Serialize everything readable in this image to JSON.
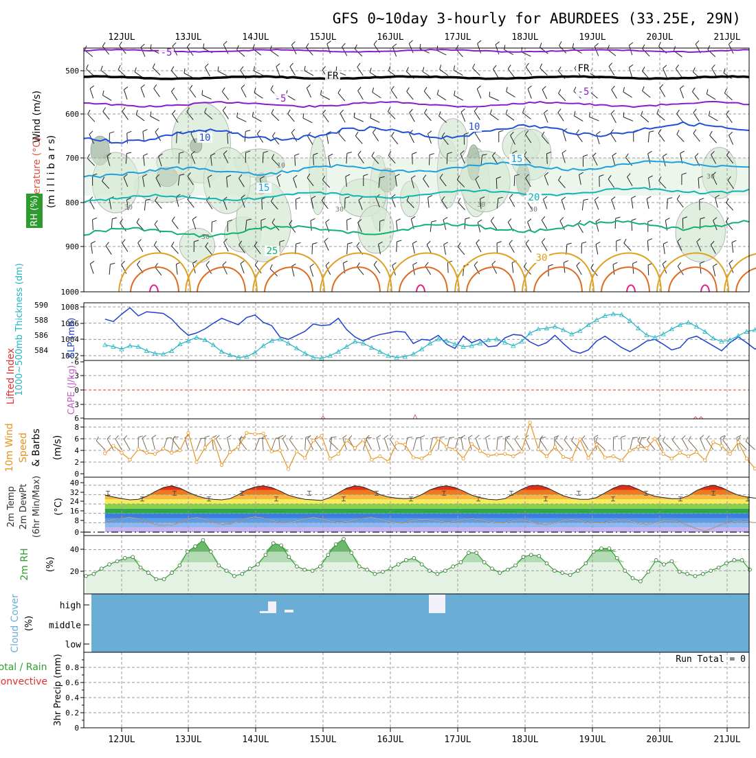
{
  "title": "GFS 0~10day 3-hourly for ABURDEES (33.25E, 29N)",
  "dates": [
    "12JUL",
    "13JUL",
    "14JUL",
    "15JUL",
    "16JUL",
    "17JUL",
    "18JUL",
    "19JUL",
    "20JUL",
    "21JUL"
  ],
  "panels": {
    "upper": {
      "axis_label": "(m i l l i b a r s)",
      "side_labels": {
        "wind": "Wind (m/s)",
        "temperature": "Temperature (°C)",
        "rh": "RH (%)"
      },
      "yticks": [
        "500",
        "600",
        "700",
        "800",
        "900",
        "1000"
      ],
      "contour_labels": [
        {
          "text": "-5",
          "level": "-5"
        },
        {
          "text": "FR",
          "level": "0"
        },
        {
          "text": "FR",
          "level": "0"
        },
        {
          "text": "-5",
          "level": "-5"
        },
        {
          "text": "-5",
          "level": "-5"
        },
        {
          "text": "10",
          "level": "10"
        },
        {
          "text": "10",
          "level": "10"
        },
        {
          "text": "15",
          "level": "15"
        },
        {
          "text": "15",
          "level": "15"
        },
        {
          "text": "20",
          "level": "20"
        },
        {
          "text": "25",
          "level": "25"
        },
        {
          "text": "30",
          "level": "30"
        }
      ],
      "rh_labels": [
        "10",
        "30",
        "30",
        "30",
        "30",
        "30",
        "30"
      ]
    },
    "slp": {
      "left_label": "1000~500mb Thickness (dm)",
      "right_label": "SLP (mb)",
      "left_ticks": [
        "590",
        "588",
        "586",
        "584"
      ],
      "right_ticks": [
        "1008",
        "1006",
        "1004",
        "1002"
      ]
    },
    "cape": {
      "label_li": "Lifted Index",
      "label_cape": "CAPE (J/kg)",
      "ticks": [
        "-6",
        "-3",
        "0",
        "3",
        "6"
      ]
    },
    "wind10": {
      "label1": "10m Wind",
      "label2": "Speed",
      "label3": "& Barbs",
      "unit": "(m/s)",
      "ticks": [
        "8",
        "6",
        "4",
        "2",
        "0"
      ]
    },
    "temp": {
      "label1": "2m Temp",
      "label2": "2m DewPt",
      "label3": "(6hr Min/Max)",
      "unit": "(°C)",
      "ticks": [
        "40",
        "32",
        "24",
        "16",
        "8",
        "0"
      ]
    },
    "rh2m": {
      "label": "2m RH",
      "unit": "(%)",
      "ticks": [
        "40",
        "20"
      ]
    },
    "cloud": {
      "label1": "Cloud Cover",
      "label2": "(%)",
      "levels": [
        "high",
        "middle",
        "low"
      ]
    },
    "precip": {
      "label1": "Total / Rain",
      "label2": "Convective",
      "label3": "3hr Precip (mm)",
      "ticks": [
        "0.8",
        "0.6",
        "0.4",
        "0.2",
        "0"
      ],
      "run_total": "Run Total = 0"
    }
  },
  "colors": {
    "slp": "#1f3fd0",
    "thickness": "#22b4c4",
    "wind10": "#e8901a",
    "rh": "#2fa02f",
    "cloud": "#6aaed6",
    "cape_zero": "#e03030",
    "temp_purple": "#8a1cc8",
    "temp_blue": "#1f4fd8",
    "temp_cyan": "#1ea0e0",
    "temp_teal": "#10b4b0",
    "temp_green": "#10b070",
    "temp_orange": "#e0a020"
  },
  "chart_data": [
    {
      "type": "line",
      "title": "SLP (mb)",
      "x_start": "12JUL",
      "step_hours": 3,
      "ylim": [
        1002,
        1008
      ],
      "series": [
        {
          "name": "SLP (mb)",
          "values": [
            1006.5,
            1006.2,
            1007.1,
            1007.9,
            1006.9,
            1007.4,
            1007.3,
            1007.2,
            1006.5,
            1005.4,
            1004.5,
            1004.8,
            1005.3,
            1006.0,
            1006.6,
            1006.2,
            1005.8,
            1006.7,
            1007.0,
            1006.1,
            1005.7,
            1004.3,
            1004.0,
            1004.5,
            1005.0,
            1005.9,
            1005.7,
            1005.8,
            1006.6,
            1005.2,
            1004.3,
            1003.8,
            1004.3,
            1004.6,
            1004.8,
            1005.0,
            1004.9,
            1003.5,
            1004.0,
            1003.9,
            1004.5,
            1003.4,
            1002.9,
            1004.4,
            1003.6,
            1004.0,
            1003.1,
            1003.2,
            1004.2,
            1004.6,
            1004.5,
            1003.7,
            1003.2,
            1003.6,
            1004.5,
            1003.5,
            1002.6,
            1002.3,
            1002.7,
            1003.8,
            1004.4,
            1003.7,
            1003.0,
            1002.5,
            1003.1,
            1003.8,
            1004.0,
            1003.4,
            1002.7,
            1003.0,
            1004.1,
            1004.4,
            1003.8,
            1003.2,
            1002.6,
            1003.6,
            1004.3,
            1003.6,
            1002.8,
            1003.5,
            1004.4,
            1004.5,
            1003.6,
            1003.9,
            1004.2,
            1003.7,
            1003.6,
            1004.1,
            1004.3,
            1004.8,
            1004.9
          ]
        }
      ]
    },
    {
      "type": "line",
      "title": "1000~500mb Thickness (dm)",
      "x_start": "12JUL",
      "step_hours": 3,
      "ylim": [
        583,
        590
      ],
      "series": [
        {
          "name": "1000~500mb Thickness (dm)",
          "values": [
            585.2,
            585.0,
            584.7,
            585.1,
            585.0,
            584.5,
            584.2,
            584.1,
            584.5,
            585.3,
            585.7,
            586.1,
            585.8,
            585.2,
            584.4,
            584.0,
            583.7,
            583.8,
            584.3,
            585.1,
            585.7,
            585.9,
            585.4,
            584.8,
            584.2,
            583.7,
            583.6,
            583.9,
            584.4,
            585.0,
            585.6,
            585.4,
            584.9,
            584.4,
            583.9,
            583.7,
            583.8,
            584.1,
            584.7,
            585.4,
            585.9,
            585.7,
            585.3,
            585.0,
            585.1,
            585.4,
            585.8,
            585.9,
            585.5,
            585.1,
            585.6,
            586.6,
            587.1,
            587.2,
            587.4,
            587.0,
            586.5,
            586.9,
            587.6,
            588.2,
            588.7,
            588.9,
            588.8,
            588.1,
            587.2,
            586.4,
            586.1,
            586.5,
            587.1,
            587.6,
            587.9,
            587.4,
            586.8,
            586.0,
            585.6,
            585.8,
            586.3,
            586.8,
            587.0,
            586.8,
            586.1,
            585.6,
            585.5,
            585.7,
            585.9,
            585.7,
            585.5,
            585.4,
            585.4,
            585.5,
            585.6
          ]
        }
      ]
    },
    {
      "type": "line",
      "title": "10m Wind Speed & Barbs (m/s)",
      "x_start": "12JUL",
      "step_hours": 3,
      "ylim": [
        0,
        9
      ],
      "series": [
        {
          "name": "10m Wind Speed",
          "values": [
            3.5,
            4.8,
            3.6,
            2.4,
            4.2,
            3.6,
            3.4,
            4.3,
            3.6,
            4.0,
            7.0,
            2.0,
            4.5,
            6.0,
            1.5,
            3.7,
            4.6,
            7.0,
            6.8,
            6.9,
            3.8,
            4.0,
            0.8,
            3.8,
            2.7,
            5.7,
            6.5,
            2.6,
            3.4,
            5.7,
            4.4,
            5.8,
            2.4,
            3.0,
            2.1,
            5.3,
            5.0,
            2.8,
            2.6,
            3.5,
            6.0,
            4.6,
            4.2,
            2.6,
            5.1,
            3.9,
            3.1,
            3.3,
            3.4,
            3.0,
            3.8,
            8.8,
            4.2,
            3.0,
            4.6,
            2.9,
            2.5,
            5.9,
            2.7,
            5.0,
            2.8,
            3.0,
            2.3,
            4.0,
            4.6,
            4.4,
            6.0,
            3.4,
            2.6,
            3.6,
            3.0,
            3.7,
            2.3,
            5.4,
            4.8,
            3.4,
            5.4,
            2.6,
            0.9,
            1.7,
            2.6,
            1.4,
            0.3,
            2.6,
            3.1,
            2.8,
            4.8,
            2.6,
            3.3,
            2.7,
            0.6
          ]
        }
      ]
    },
    {
      "type": "area",
      "title": "2m Temp / 2m DewPt",
      "unit": "°C",
      "x_start": "12JUL",
      "step_hours": 3,
      "ylim": [
        0,
        41
      ],
      "series": [
        {
          "name": "2m Temp",
          "values": [
            31.5,
            30.0,
            28.5,
            27.5,
            28.0,
            30.5,
            34.5,
            38.0,
            39.5,
            37.5,
            34.0,
            31.0,
            29.0,
            28.0,
            27.5,
            28.5,
            32.0,
            36.0,
            38.5,
            39.5,
            38.0,
            35.0,
            31.5,
            29.5,
            28.0,
            27.5,
            27.0,
            29.5,
            33.5,
            37.5,
            39.5,
            38.5,
            35.5,
            32.0,
            30.0,
            29.0,
            28.5,
            29.0,
            32.0,
            36.0,
            38.5,
            39.5,
            38.0,
            35.0,
            31.5,
            29.5,
            28.0,
            27.5,
            28.5,
            32.5,
            36.5,
            39.5,
            40.0,
            38.0,
            34.5,
            31.0,
            29.0,
            28.0,
            28.0,
            29.5,
            33.5,
            37.5,
            40.0,
            39.5,
            36.5,
            33.0,
            30.5,
            29.5,
            28.5,
            28.5,
            31.0,
            35.5,
            38.5,
            40.0,
            38.0,
            34.5,
            31.5,
            30.0,
            29.0,
            28.5,
            30.5,
            35.0,
            38.5,
            40.5,
            39.0,
            35.5,
            32.5,
            30.5,
            30.0,
            30.5,
            35.5
          ]
        },
        {
          "name": "2m DewPt",
          "values": [
            9.0,
            10.5,
            12.0,
            12.5,
            11.5,
            9.0,
            6.5,
            5.5,
            6.0,
            8.5,
            11.5,
            12.5,
            11.0,
            8.5,
            6.5,
            7.0,
            9.0,
            12.0,
            13.0,
            12.0,
            10.0,
            8.5,
            8.0,
            9.5,
            11.5,
            12.5,
            11.5,
            9.5,
            8.5,
            9.0,
            10.5,
            12.0,
            12.5,
            11.0,
            9.0,
            8.0,
            8.5,
            10.0,
            11.0,
            10.5,
            9.5,
            8.5,
            9.0,
            10.5,
            11.5,
            10.5,
            9.0,
            8.0,
            8.5,
            9.5,
            10.5,
            9.0,
            7.0,
            6.5,
            8.0,
            10.0,
            11.0,
            10.0,
            8.5,
            8.0,
            8.5,
            9.5,
            10.5,
            9.5,
            7.5,
            6.5,
            8.0,
            9.5,
            10.0,
            8.5,
            5.5,
            3.0,
            1.0,
            3.5,
            6.5,
            8.5,
            9.5,
            9.0,
            8.0,
            8.5,
            10.0,
            11.0,
            10.0,
            8.5,
            9.0,
            10.5,
            11.0,
            10.5,
            9.5,
            9.0,
            9.0
          ]
        }
      ]
    },
    {
      "type": "area",
      "title": "2m RH",
      "unit": "%",
      "x_start": "12JUL",
      "step_hours": 3,
      "ylim": [
        0,
        52
      ],
      "series": [
        {
          "name": "2m RH",
          "values": [
            15,
            17,
            22,
            26,
            29,
            32,
            33,
            23,
            18,
            12,
            12,
            18,
            25,
            38,
            43,
            49,
            38,
            25,
            20,
            15,
            17,
            22,
            26,
            35,
            46,
            44,
            33,
            24,
            21,
            20,
            24,
            35,
            45,
            50,
            37,
            24,
            21,
            17,
            19,
            22,
            26,
            30,
            32,
            26,
            20,
            17,
            20,
            24,
            28,
            37,
            37,
            28,
            22,
            18,
            21,
            25,
            33,
            35,
            34,
            27,
            20,
            18,
            16,
            20,
            27,
            38,
            41,
            41,
            32,
            20,
            13,
            10,
            19,
            30,
            26,
            29,
            19,
            17,
            15,
            17,
            20,
            23,
            27,
            30,
            30,
            21
          ]
        }
      ]
    },
    {
      "type": "line",
      "title": "3hr Precip (mm)",
      "ylim": [
        0,
        1
      ],
      "series": [
        {
          "name": "Total / Rain",
          "values": [
            0,
            0,
            0,
            0,
            0,
            0,
            0,
            0,
            0,
            0
          ]
        }
      ]
    }
  ]
}
